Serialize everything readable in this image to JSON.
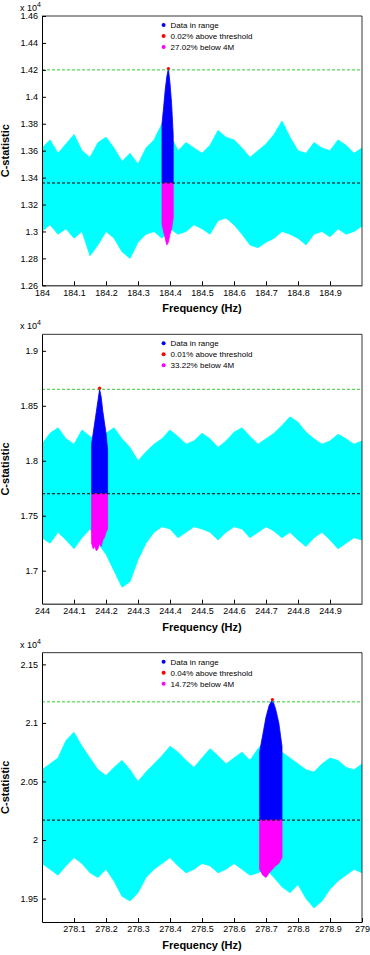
{
  "chart_data": [
    {
      "type": "scatter",
      "x_label": "Frequency (Hz)",
      "y_label": "C-statistic",
      "y_multiplier": {
        "text": "x 10",
        "exponent": "4"
      },
      "xlim": [
        184,
        185
      ],
      "xticks": [
        184,
        184.1,
        184.2,
        184.3,
        184.4,
        184.5,
        184.6,
        184.7,
        184.8,
        184.9
      ],
      "ylim": [
        1.26,
        1.46
      ],
      "yticks": [
        1.26,
        1.28,
        1.3,
        1.32,
        1.34,
        1.36,
        1.38,
        1.4,
        1.42,
        1.44,
        1.46
      ],
      "grid": false,
      "legend": "top",
      "hlines": [
        {
          "value": 1.336,
          "color": "#000000",
          "line_style": "dashed"
        },
        {
          "value": 1.42,
          "color": "#33cc33",
          "line_style": "dashed"
        }
      ],
      "series": [
        {
          "type": "band",
          "color": "#00ffff",
          "x": [
            184,
            184.025,
            184.05,
            184.075,
            184.1,
            184.125,
            184.15,
            184.175,
            184.2,
            184.225,
            184.25,
            184.275,
            184.3,
            184.325,
            184.35,
            184.375,
            184.4,
            184.425,
            184.45,
            184.475,
            184.5,
            184.525,
            184.55,
            184.575,
            184.6,
            184.625,
            184.65,
            184.675,
            184.7,
            184.725,
            184.75,
            184.775,
            184.8,
            184.825,
            184.85,
            184.875,
            184.9,
            184.925,
            184.95,
            184.975,
            185
          ],
          "high": [
            1.362,
            1.368,
            1.358,
            1.365,
            1.372,
            1.36,
            1.355,
            1.366,
            1.37,
            1.362,
            1.352,
            1.358,
            1.35,
            1.362,
            1.368,
            1.38,
            1.372,
            1.36,
            1.366,
            1.362,
            1.358,
            1.364,
            1.375,
            1.37,
            1.368,
            1.362,
            1.355,
            1.36,
            1.365,
            1.372,
            1.382,
            1.37,
            1.36,
            1.358,
            1.366,
            1.362,
            1.36,
            1.368,
            1.364,
            1.358,
            1.362
          ],
          "low": [
            1.3,
            1.305,
            1.298,
            1.302,
            1.295,
            1.3,
            1.282,
            1.29,
            1.3,
            1.295,
            1.285,
            1.28,
            1.292,
            1.298,
            1.3,
            1.295,
            1.302,
            1.298,
            1.3,
            1.305,
            1.302,
            1.298,
            1.308,
            1.31,
            1.305,
            1.298,
            1.29,
            1.288,
            1.292,
            1.295,
            1.3,
            1.298,
            1.295,
            1.29,
            1.298,
            1.3,
            1.296,
            1.302,
            1.298,
            1.3,
            1.304
          ]
        },
        {
          "type": "band",
          "name": "Data in range",
          "color": "#0000ff",
          "x": [
            184.375,
            184.38,
            184.385,
            184.39,
            184.395,
            184.4,
            184.405,
            184.41
          ],
          "high": [
            1.38,
            1.392,
            1.405,
            1.415,
            1.421,
            1.41,
            1.395,
            1.372
          ],
          "low": [
            1.336,
            1.336,
            1.336,
            1.336,
            1.336,
            1.336,
            1.336,
            1.336
          ]
        },
        {
          "type": "scatter",
          "name": "0.02% above threshold",
          "color": "#ff0000",
          "marker": "circle",
          "x": [
            184.395
          ],
          "values": [
            1.421
          ]
        },
        {
          "type": "band",
          "name": "27.02% below 4M",
          "color": "#ff00ff",
          "x": [
            184.375,
            184.38,
            184.385,
            184.39,
            184.395,
            184.4,
            184.405,
            184.41
          ],
          "high": [
            1.336,
            1.336,
            1.336,
            1.336,
            1.336,
            1.336,
            1.336,
            1.336
          ],
          "low": [
            1.305,
            1.3,
            1.295,
            1.29,
            1.292,
            1.298,
            1.302,
            1.31
          ]
        }
      ]
    },
    {
      "type": "scatter",
      "x_label": "Frequency (Hz)",
      "y_label": "C-statistic",
      "y_multiplier": {
        "text": "x 10",
        "exponent": "4"
      },
      "xlim": [
        244,
        245
      ],
      "xticks": [
        244,
        244.1,
        244.2,
        244.3,
        244.4,
        244.5,
        244.6,
        244.7,
        244.8,
        244.9
      ],
      "ylim": [
        1.67,
        1.915
      ],
      "yticks": [
        1.7,
        1.75,
        1.8,
        1.85,
        1.9
      ],
      "grid": false,
      "legend": "top",
      "hlines": [
        {
          "value": 1.77,
          "color": "#000000",
          "line_style": "dashed"
        },
        {
          "value": 1.865,
          "color": "#33cc33",
          "line_style": "dashed"
        }
      ],
      "series": [
        {
          "type": "band",
          "color": "#00ffff",
          "x": [
            244,
            244.025,
            244.05,
            244.075,
            244.1,
            244.125,
            244.15,
            244.175,
            244.2,
            244.225,
            244.25,
            244.275,
            244.3,
            244.325,
            244.35,
            244.375,
            244.4,
            244.425,
            244.45,
            244.475,
            244.5,
            244.525,
            244.55,
            244.575,
            244.6,
            244.625,
            244.65,
            244.675,
            244.7,
            244.725,
            244.75,
            244.775,
            244.8,
            244.825,
            244.85,
            244.875,
            244.9,
            244.925,
            244.95,
            244.975,
            245
          ],
          "high": [
            1.815,
            1.825,
            1.83,
            1.82,
            1.815,
            1.828,
            1.822,
            1.818,
            1.825,
            1.83,
            1.82,
            1.812,
            1.8,
            1.808,
            1.815,
            1.82,
            1.828,
            1.822,
            1.815,
            1.818,
            1.825,
            1.82,
            1.812,
            1.818,
            1.826,
            1.83,
            1.822,
            1.815,
            1.82,
            1.825,
            1.832,
            1.84,
            1.835,
            1.826,
            1.82,
            1.815,
            1.818,
            1.824,
            1.82,
            1.815,
            1.818
          ],
          "low": [
            1.73,
            1.725,
            1.735,
            1.728,
            1.72,
            1.73,
            1.738,
            1.725,
            1.715,
            1.7,
            1.685,
            1.69,
            1.71,
            1.725,
            1.735,
            1.74,
            1.738,
            1.73,
            1.735,
            1.74,
            1.738,
            1.735,
            1.728,
            1.735,
            1.74,
            1.738,
            1.73,
            1.735,
            1.74,
            1.736,
            1.73,
            1.735,
            1.728,
            1.722,
            1.73,
            1.735,
            1.728,
            1.72,
            1.725,
            1.73,
            1.728
          ]
        },
        {
          "type": "band",
          "name": "Data in range",
          "color": "#0000ff",
          "x": [
            244.155,
            244.16,
            244.165,
            244.17,
            244.175,
            244.18,
            244.185,
            244.19,
            244.195,
            244.2,
            244.205
          ],
          "high": [
            1.815,
            1.825,
            1.835,
            1.845,
            1.855,
            1.865,
            1.858,
            1.845,
            1.835,
            1.825,
            1.81
          ],
          "low": [
            1.77,
            1.77,
            1.77,
            1.77,
            1.77,
            1.77,
            1.77,
            1.77,
            1.77,
            1.77,
            1.77
          ]
        },
        {
          "type": "scatter",
          "name": "0.01% above threshold",
          "color": "#ff0000",
          "marker": "circle",
          "x": [
            244.18
          ],
          "values": [
            1.866
          ]
        },
        {
          "type": "band",
          "name": "33.22% below 4M",
          "color": "#ff00ff",
          "x": [
            244.155,
            244.16,
            244.165,
            244.17,
            244.175,
            244.18,
            244.185,
            244.19,
            244.195,
            244.2,
            244.205
          ],
          "high": [
            1.77,
            1.77,
            1.77,
            1.77,
            1.77,
            1.77,
            1.77,
            1.77,
            1.77,
            1.77,
            1.77
          ],
          "low": [
            1.725,
            1.72,
            1.722,
            1.718,
            1.72,
            1.725,
            1.722,
            1.728,
            1.73,
            1.735,
            1.738
          ]
        }
      ]
    },
    {
      "type": "scatter",
      "x_label": "Frequency (Hz)",
      "y_label": "C-statistic",
      "y_multiplier": {
        "text": "x 10",
        "exponent": "4"
      },
      "xlim": [
        278,
        279
      ],
      "xticks": [
        278.1,
        278.2,
        278.3,
        278.4,
        278.5,
        278.6,
        278.7,
        278.8,
        278.9,
        279
      ],
      "ylim": [
        1.93,
        2.16
      ],
      "yticks": [
        1.95,
        2,
        2.05,
        2.1,
        2.15
      ],
      "grid": false,
      "legend": "top",
      "hlines": [
        {
          "value": 2.017,
          "color": "#000000",
          "line_style": "dashed"
        },
        {
          "value": 2.118,
          "color": "#33cc33",
          "line_style": "dashed"
        }
      ],
      "series": [
        {
          "type": "band",
          "color": "#00ffff",
          "x": [
            278,
            278.025,
            278.05,
            278.075,
            278.1,
            278.125,
            278.15,
            278.175,
            278.2,
            278.225,
            278.25,
            278.275,
            278.3,
            278.325,
            278.35,
            278.375,
            278.4,
            278.425,
            278.45,
            278.475,
            278.5,
            278.525,
            278.55,
            278.575,
            278.6,
            278.625,
            278.65,
            278.675,
            278.7,
            278.725,
            278.75,
            278.775,
            278.8,
            278.825,
            278.85,
            278.875,
            278.9,
            278.925,
            278.95,
            278.975,
            279
          ],
          "high": [
            2.06,
            2.065,
            2.07,
            2.085,
            2.092,
            2.08,
            2.07,
            2.06,
            2.055,
            2.062,
            2.068,
            2.06,
            2.05,
            2.058,
            2.065,
            2.072,
            2.08,
            2.075,
            2.068,
            2.062,
            2.07,
            2.078,
            2.072,
            2.065,
            2.07,
            2.075,
            2.068,
            2.078,
            2.085,
            2.08,
            2.075,
            2.07,
            2.065,
            2.06,
            2.058,
            2.065,
            2.07,
            2.068,
            2.062,
            2.06,
            2.065
          ],
          "low": [
            1.98,
            1.975,
            1.97,
            1.978,
            1.985,
            1.98,
            1.972,
            1.968,
            1.975,
            1.965,
            1.952,
            1.948,
            1.955,
            1.968,
            1.975,
            1.98,
            1.985,
            1.978,
            1.972,
            1.975,
            1.98,
            1.978,
            1.972,
            1.975,
            1.98,
            1.975,
            1.97,
            1.972,
            1.975,
            1.968,
            1.96,
            1.955,
            1.962,
            1.95,
            1.942,
            1.948,
            1.958,
            1.965,
            1.97,
            1.975,
            1.972
          ]
        },
        {
          "type": "band",
          "name": "Data in range",
          "color": "#0000ff",
          "x": [
            278.68,
            278.69,
            278.7,
            278.71,
            278.72,
            278.73,
            278.74,
            278.75
          ],
          "high": [
            2.075,
            2.09,
            2.105,
            2.115,
            2.12,
            2.112,
            2.1,
            2.08
          ],
          "low": [
            2.017,
            2.017,
            2.017,
            2.017,
            2.017,
            2.017,
            2.017,
            2.017
          ]
        },
        {
          "type": "scatter",
          "name": "0.04% above threshold",
          "color": "#ff0000",
          "marker": "circle",
          "x": [
            278.72
          ],
          "values": [
            2.12
          ]
        },
        {
          "type": "band",
          "name": "14.72% below 4M",
          "color": "#ff00ff",
          "x": [
            278.68,
            278.69,
            278.7,
            278.71,
            278.72,
            278.73,
            278.74,
            278.75
          ],
          "high": [
            2.017,
            2.017,
            2.017,
            2.017,
            2.017,
            2.017,
            2.017,
            2.017
          ],
          "low": [
            1.975,
            1.97,
            1.968,
            1.972,
            1.975,
            1.978,
            1.98,
            1.985
          ]
        }
      ]
    }
  ]
}
